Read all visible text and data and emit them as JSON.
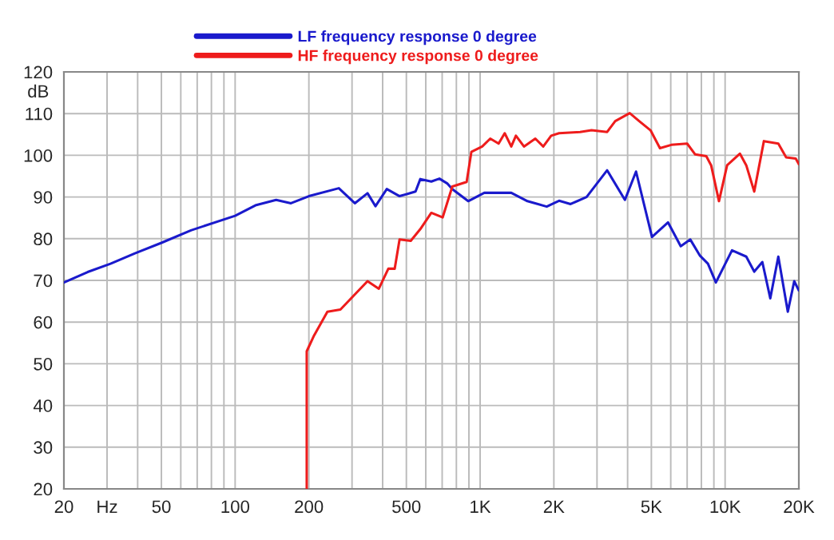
{
  "chart_data": {
    "type": "line",
    "ylabel": "dB",
    "log": "x",
    "grid": true,
    "legend": "top left",
    "line_style": "solid",
    "marker": "none",
    "xlim": [
      20,
      20000
    ],
    "ylim": [
      20,
      120
    ],
    "xticks": [
      20,
      {
        "value": 30,
        "label": "Hz"
      },
      50,
      100,
      200,
      500,
      {
        "value": 1000,
        "label": "1K"
      },
      {
        "value": 2000,
        "label": "2K"
      },
      {
        "value": 5000,
        "label": "5K"
      },
      {
        "value": 10000,
        "label": "10K"
      },
      {
        "value": 20000,
        "label": "20K"
      }
    ],
    "yticks": [
      20,
      30,
      40,
      50,
      60,
      70,
      80,
      90,
      100,
      110,
      120
    ],
    "series": [
      {
        "name": "LF frequency response 0 degree",
        "color": "#1a1acc",
        "x": [
          20,
          25,
          31,
          39,
          50,
          66,
          100,
          121,
          147,
          169,
          200,
          265,
          308,
          347,
          374,
          416,
          469,
          545,
          570,
          632,
          682,
          736,
          770,
          894,
          1040,
          1340,
          1560,
          1870,
          2100,
          2340,
          2720,
          3300,
          3900,
          4330,
          5030,
          5850,
          6590,
          7210,
          7900,
          8510,
          9170,
          10670,
          12200,
          13150,
          14190,
          15290,
          16490,
          18030,
          19150,
          20000
        ],
        "values": [
          69.5,
          72,
          74,
          76.5,
          79,
          82,
          85.5,
          88,
          89.3,
          88.5,
          90.2,
          92.1,
          88.5,
          90.9,
          87.8,
          91.9,
          90.2,
          91.3,
          94.3,
          93.7,
          94.4,
          93.2,
          91.9,
          89,
          91,
          91,
          89,
          87.7,
          89.1,
          88.3,
          90,
          96.4,
          89.3,
          96.1,
          80.4,
          83.9,
          78.2,
          79.8,
          75.9,
          74,
          69.5,
          77.2,
          75.7,
          72.1,
          74.4,
          65.7,
          75.7,
          62.5,
          69.8,
          67.6
        ]
      },
      {
        "name": "HF frequency response 0 degree",
        "color": "#ee1c1c",
        "x": [
          196,
          196,
          210,
          238,
          269,
          347,
          386,
          422,
          448,
          469,
          521,
          570,
          632,
          703,
          770,
          881,
          921,
          1020,
          1100,
          1190,
          1260,
          1340,
          1400,
          1510,
          1680,
          1810,
          1950,
          2100,
          2560,
          2850,
          3300,
          3560,
          4080,
          4460,
          4960,
          5420,
          6030,
          7000,
          7550,
          8380,
          8770,
          9440,
          10190,
          11490,
          12200,
          13150,
          14400,
          16490,
          17750,
          19420,
          20000
        ],
        "values": [
          20,
          53,
          56.8,
          62.5,
          63,
          69.8,
          68,
          72.8,
          72.8,
          79.8,
          79.5,
          82.3,
          86.2,
          85.1,
          92.5,
          93.6,
          100.8,
          102.1,
          104,
          102.8,
          105.3,
          102.1,
          104.7,
          102.1,
          104,
          102.1,
          104.7,
          105.3,
          105.6,
          106,
          105.6,
          108.2,
          110.1,
          108.2,
          106,
          101.7,
          102.5,
          102.8,
          100.2,
          99.8,
          97.6,
          89,
          97.6,
          100.4,
          97.6,
          91.3,
          103.4,
          102.8,
          99.5,
          99.2,
          97.9
        ]
      }
    ]
  }
}
